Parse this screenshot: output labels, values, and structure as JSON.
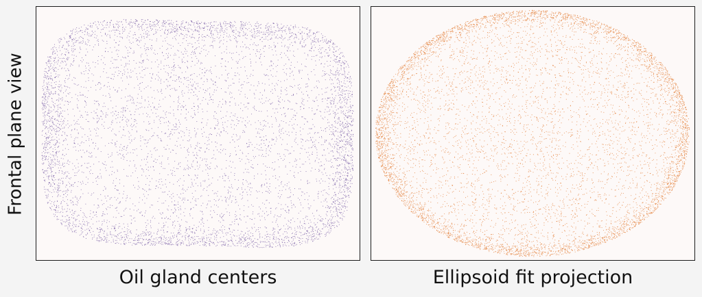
{
  "figure": {
    "ylabel": "Frontal plane view"
  },
  "chart_data": [
    {
      "type": "scatter",
      "title": "Oil gland centers",
      "color": "#6a4c9c",
      "shape": "rounded-rectangle",
      "density": "denser near boundary, especially top and bottom edges",
      "grid": false,
      "axes_ticks": false,
      "n_points": 7000
    },
    {
      "type": "scatter",
      "title": "Ellipsoid fit projection",
      "color": "#e07020",
      "shape": "ellipse",
      "density": "denser near elliptical boundary",
      "grid": false,
      "axes_ticks": false,
      "n_points": 8000
    }
  ]
}
